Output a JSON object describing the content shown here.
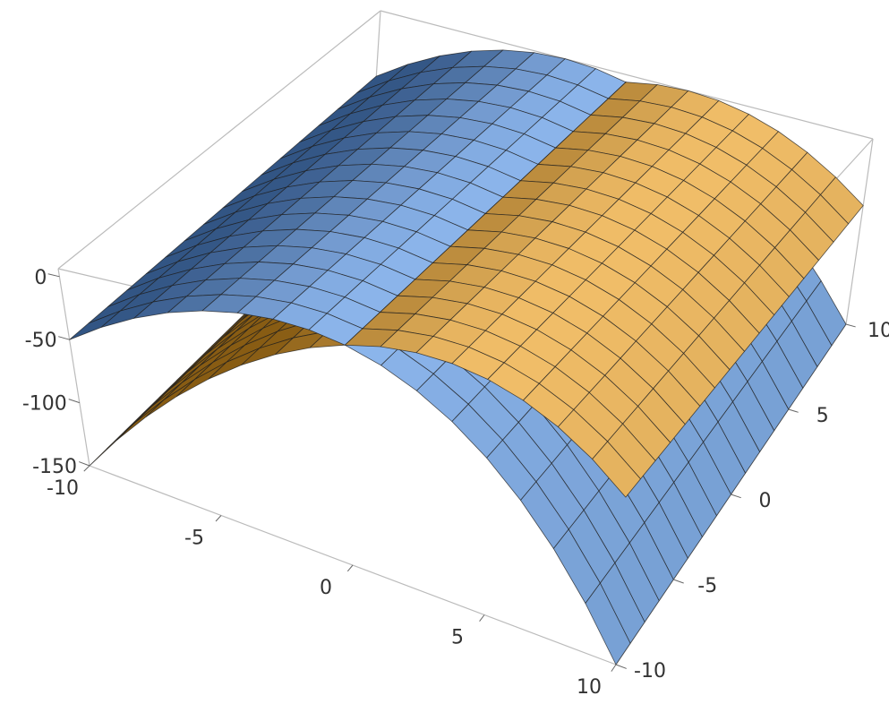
{
  "chart_data": {
    "type": "surface3d",
    "x": [
      -10,
      -8.75,
      -7.5,
      -6.25,
      -5,
      -3.75,
      -2.5,
      -1.25,
      0,
      1.25,
      2.5,
      3.75,
      5,
      6.25,
      7.5,
      8.75,
      10
    ],
    "y": [
      -10,
      -8.75,
      -7.5,
      -6.25,
      -5,
      -3.75,
      -2.5,
      -1.25,
      0,
      1.25,
      2.5,
      3.75,
      5,
      6.25,
      7.5,
      8.75,
      10
    ],
    "series": [
      {
        "color": "#5b9bf0",
        "values": [
          -50,
          -32.8125,
          -18.75,
          -7.8125,
          0,
          4.6875,
          6.25,
          4.6875,
          0,
          -7.8125,
          -18.75,
          -32.8125,
          -50,
          -70.3125,
          -93.75,
          -120.3125,
          -150
        ]
      },
      {
        "color": "#f7a823",
        "values": [
          -150,
          -120.3125,
          -93.75,
          -70.3125,
          -50,
          -32.8125,
          -18.75,
          -7.8125,
          0,
          4.6875,
          6.25,
          4.6875,
          0,
          -7.8125,
          -18.75,
          -32.8125,
          -50
        ]
      }
    ],
    "xlim": [
      -10,
      10
    ],
    "ylim": [
      -10,
      10
    ],
    "zlim": [
      -150,
      6.25
    ],
    "xticks": [
      -10,
      -5,
      0,
      5,
      10
    ],
    "yticks": [
      -10,
      -5,
      0,
      5,
      10
    ],
    "zticks": [
      -150,
      -100,
      -50,
      0
    ],
    "mesh": true,
    "box": true
  }
}
